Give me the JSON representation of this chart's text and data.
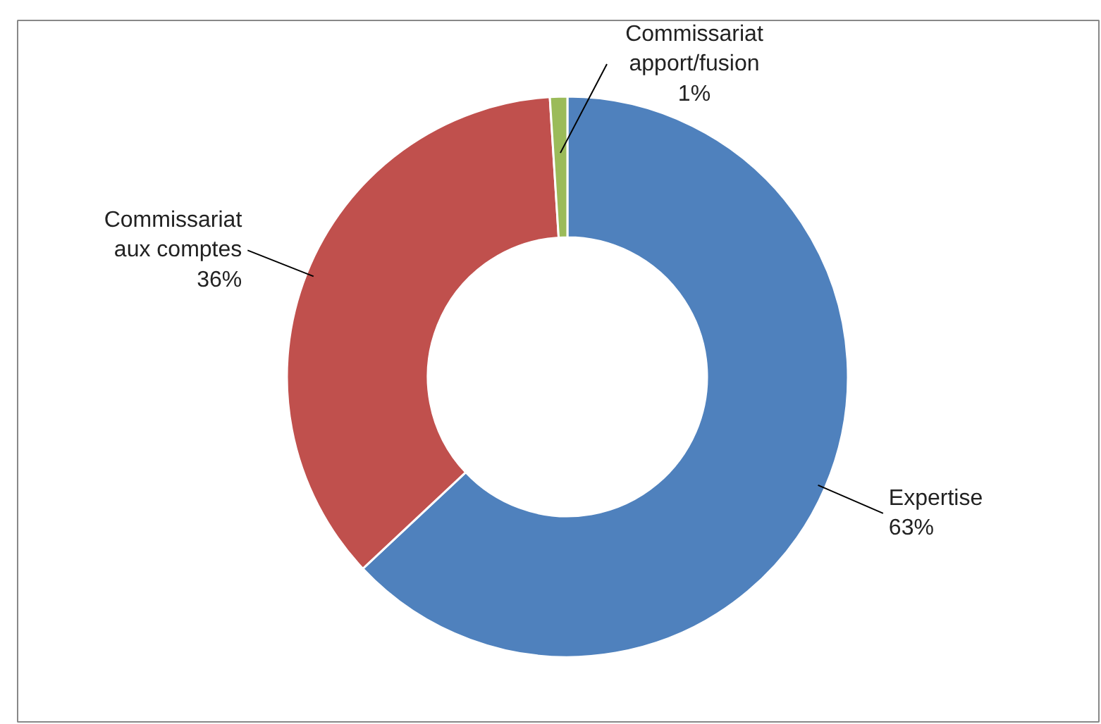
{
  "chart_data": {
    "type": "donut",
    "categories": [
      "Expertise",
      "Commissariat\naux comptes",
      "Commissariat\napport/fusion"
    ],
    "values": [
      63,
      36,
      1
    ],
    "value_labels": [
      "63%",
      "36%",
      "1%"
    ],
    "colors": [
      "#4f81bd",
      "#c0504d",
      "#9bbb59"
    ]
  }
}
